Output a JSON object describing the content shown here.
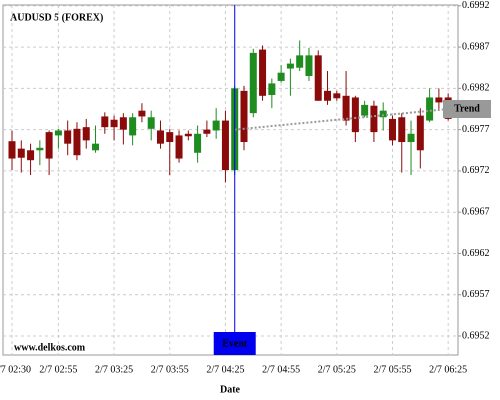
{
  "chart_data": {
    "type": "candlestick",
    "title": "AUDUSD 5 (FOREX)",
    "watermark": "www.delkos.com",
    "x_label": "Date",
    "categories": [
      "2/7 02:30",
      null,
      null,
      null,
      null,
      "2/7 02:55",
      null,
      null,
      null,
      null,
      null,
      "2/7 03:25",
      null,
      null,
      null,
      null,
      null,
      "2/7 03:55",
      null,
      null,
      null,
      null,
      null,
      "2/7 04:25",
      null,
      null,
      null,
      null,
      null,
      "2/7 04:55",
      null,
      null,
      null,
      null,
      null,
      "2/7 05:25",
      null,
      null,
      null,
      null,
      null,
      "2/7 05:55",
      null,
      null,
      null,
      null,
      null,
      "2/7 06:25"
    ],
    "open": [
      0.69756,
      0.69747,
      0.69745,
      0.69745,
      0.69767,
      0.69763,
      0.69769,
      0.69771,
      0.69773,
      0.69745,
      0.69786,
      0.69782,
      0.69785,
      0.69763,
      0.69793,
      0.69771,
      0.69769,
      0.69767,
      0.69763,
      0.69765,
      0.69742,
      0.6977,
      0.69769,
      0.69781,
      0.69721,
      0.69817,
      0.6979,
      0.69867,
      0.69812,
      0.69829,
      0.69844,
      0.69845,
      0.69835,
      0.6986,
      0.69817,
      0.69814,
      0.69811,
      0.69809,
      0.69787,
      0.69799,
      0.69785,
      0.69783,
      0.69785,
      0.69755,
      0.69787,
      0.69781,
      0.69809,
      0.69809
    ],
    "high": [
      0.69769,
      0.69757,
      0.69753,
      0.69757,
      0.69769,
      0.69771,
      0.69781,
      0.69779,
      0.69783,
      0.69775,
      0.69791,
      0.69787,
      0.6979,
      0.6979,
      0.69802,
      0.69793,
      0.69781,
      0.69771,
      0.69769,
      0.69769,
      0.69775,
      0.69781,
      0.69796,
      0.69793,
      0.69823,
      0.69823,
      0.69868,
      0.69872,
      0.69832,
      0.69848,
      0.69856,
      0.69878,
      0.69869,
      0.69866,
      0.69841,
      0.69817,
      0.69841,
      0.69811,
      0.69805,
      0.69805,
      0.69803,
      0.69787,
      0.6979,
      0.69781,
      0.69796,
      0.6982,
      0.6982,
      0.69814
    ],
    "low": [
      0.69721,
      0.69718,
      0.69715,
      0.69727,
      0.69715,
      0.69747,
      0.69739,
      0.69733,
      0.69747,
      0.69742,
      0.69765,
      0.69757,
      0.69752,
      0.69751,
      0.69779,
      0.69757,
      0.69747,
      0.69715,
      0.6973,
      0.69757,
      0.6973,
      0.69761,
      0.69759,
      0.69706,
      0.69715,
      0.69745,
      0.69785,
      0.69805,
      0.69796,
      0.69827,
      0.69811,
      0.69841,
      0.69829,
      0.69805,
      0.698,
      0.69805,
      0.69775,
      0.69755,
      0.69785,
      0.69755,
      0.69769,
      0.69751,
      0.69718,
      0.69715,
      0.69723,
      0.69779,
      0.69793,
      0.69781
    ],
    "close": [
      0.69735,
      0.69736,
      0.69733,
      0.69748,
      0.69735,
      0.69769,
      0.69753,
      0.69739,
      0.69757,
      0.69753,
      0.69773,
      0.69773,
      0.6977,
      0.69785,
      0.69786,
      0.69785,
      0.69753,
      0.69755,
      0.69735,
      0.69762,
      0.69765,
      0.69765,
      0.69781,
      0.69721,
      0.6982,
      0.69755,
      0.69863,
      0.69811,
      0.69826,
      0.69839,
      0.6985,
      0.6986,
      0.6986,
      0.69805,
      0.69805,
      0.69808,
      0.69781,
      0.69767,
      0.698,
      0.69767,
      0.69793,
      0.69757,
      0.69755,
      0.69765,
      0.69745,
      0.69809,
      0.69803,
      0.69783
    ],
    "up_color": "#1e8c1e",
    "down_color": "#8b0a0a",
    "ylim": [
      0.69497,
      0.69921
    ],
    "yticks": [
      0.6952,
      0.6957,
      0.6962,
      0.6967,
      0.6972,
      0.6977,
      0.6982,
      0.6987,
      0.6992
    ],
    "grid": true,
    "event": {
      "label": "Event",
      "at": 24,
      "color": "#0000ee"
    },
    "trend": {
      "label": "Trend",
      "points": [
        [
          24,
          0.6977
        ],
        [
          47,
          0.69795
        ]
      ],
      "color": "#999999"
    }
  }
}
